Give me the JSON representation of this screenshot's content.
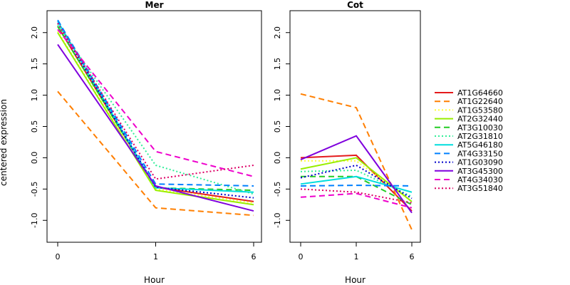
{
  "chart_data": {
    "type": "line",
    "ylabel": "centered expression",
    "xlabel": "Hour",
    "x_ticks": [
      "0",
      "1",
      "6"
    ],
    "y_ticks": [
      "-1.0",
      "-0.5",
      "0.0",
      "0.5",
      "1.0",
      "1.5",
      "2.0"
    ],
    "ylim": [
      -1.35,
      2.35
    ],
    "panels": [
      {
        "title": "Mer",
        "series": [
          {
            "name": "AT1G64660",
            "color": "#e41a1c",
            "dash": "solid",
            "values": [
              2.1,
              -0.47,
              -0.7
            ]
          },
          {
            "name": "AT1G22640",
            "color": "#ff7f00",
            "dash": "dashed",
            "values": [
              1.06,
              -0.8,
              -0.92
            ]
          },
          {
            "name": "AT1G53580",
            "color": "#ffff33",
            "dash": "dotted",
            "values": [
              2.02,
              -0.5,
              -0.72
            ]
          },
          {
            "name": "AT2G32440",
            "color": "#99ee00",
            "dash": "solid",
            "values": [
              2.0,
              -0.52,
              -0.75
            ]
          },
          {
            "name": "AT3G10030",
            "color": "#22cc22",
            "dash": "dashed",
            "values": [
              2.1,
              -0.48,
              -0.52
            ]
          },
          {
            "name": "AT2G31810",
            "color": "#33ee99",
            "dash": "dotted",
            "values": [
              2.12,
              -0.12,
              -0.58
            ]
          },
          {
            "name": "AT5G46180",
            "color": "#00dddd",
            "dash": "solid",
            "values": [
              2.18,
              -0.48,
              -0.55
            ]
          },
          {
            "name": "AT4G33150",
            "color": "#0080ff",
            "dash": "dashed",
            "values": [
              2.2,
              -0.42,
              -0.45
            ]
          },
          {
            "name": "AT1G03090",
            "color": "#0000cc",
            "dash": "dotted",
            "values": [
              2.15,
              -0.47,
              -0.64
            ]
          },
          {
            "name": "AT3G45300",
            "color": "#7f00dd",
            "dash": "solid",
            "values": [
              1.81,
              -0.45,
              -0.85
            ]
          },
          {
            "name": "AT4G34030",
            "color": "#ee00cc",
            "dash": "dashed",
            "values": [
              2.05,
              0.1,
              -0.3
            ]
          },
          {
            "name": "AT3G51840",
            "color": "#dd0066",
            "dash": "dotted",
            "values": [
              2.15,
              -0.34,
              -0.12
            ]
          }
        ]
      },
      {
        "title": "Cot",
        "series": [
          {
            "name": "AT1G64660",
            "color": "#e41a1c",
            "dash": "solid",
            "values": [
              0.0,
              0.04,
              -0.85
            ]
          },
          {
            "name": "AT1G22640",
            "color": "#ff7f00",
            "dash": "dashed",
            "values": [
              1.02,
              0.8,
              -1.15
            ]
          },
          {
            "name": "AT1G53580",
            "color": "#ffff33",
            "dash": "dotted",
            "values": [
              -0.05,
              -0.05,
              -0.7
            ]
          },
          {
            "name": "AT2G32440",
            "color": "#99ee00",
            "dash": "solid",
            "values": [
              -0.18,
              0.0,
              -0.7
            ]
          },
          {
            "name": "AT3G10030",
            "color": "#22cc22",
            "dash": "dashed",
            "values": [
              -0.3,
              -0.3,
              -0.75
            ]
          },
          {
            "name": "AT2G31810",
            "color": "#33ee99",
            "dash": "dotted",
            "values": [
              -0.22,
              -0.2,
              -0.62
            ]
          },
          {
            "name": "AT5G46180",
            "color": "#00dddd",
            "dash": "solid",
            "values": [
              -0.42,
              -0.3,
              -0.55
            ]
          },
          {
            "name": "AT4G33150",
            "color": "#0080ff",
            "dash": "dashed",
            "values": [
              -0.45,
              -0.44,
              -0.45
            ]
          },
          {
            "name": "AT1G03090",
            "color": "#0000cc",
            "dash": "dotted",
            "values": [
              -0.32,
              -0.12,
              -0.65
            ]
          },
          {
            "name": "AT3G45300",
            "color": "#7f00dd",
            "dash": "solid",
            "values": [
              -0.03,
              0.35,
              -0.88
            ]
          },
          {
            "name": "AT4G34030",
            "color": "#ee00cc",
            "dash": "dashed",
            "values": [
              -0.63,
              -0.57,
              -0.8
            ]
          },
          {
            "name": "AT3G51840",
            "color": "#dd0066",
            "dash": "dotted",
            "values": [
              -0.5,
              -0.55,
              -0.72
            ]
          }
        ]
      }
    ],
    "legend_position": "right",
    "grid": false
  }
}
